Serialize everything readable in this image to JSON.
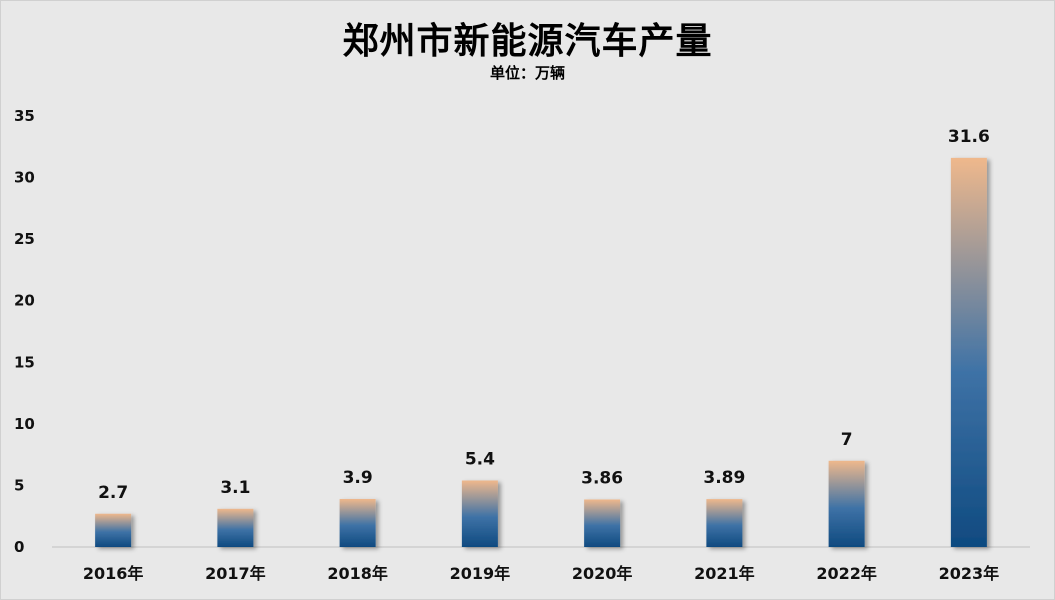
{
  "chart_data": {
    "type": "bar",
    "title": "郑州市新能源汽车产量",
    "subtitle": "单位：万辆",
    "categories": [
      "2016年",
      "2017年",
      "2018年",
      "2019年",
      "2020年",
      "2021年",
      "2022年",
      "2023年"
    ],
    "values": [
      2.7,
      3.1,
      3.9,
      5.4,
      3.86,
      3.89,
      7,
      31.6
    ],
    "value_labels": [
      "2.7",
      "3.1",
      "3.9",
      "5.4",
      "3.86",
      "3.89",
      "7",
      "31.6"
    ],
    "ylim": [
      0,
      35
    ],
    "yticks": [
      0,
      5,
      10,
      15,
      20,
      25,
      30,
      35
    ],
    "grid": false,
    "bar_gradient": {
      "bottom": "#0f4a80",
      "middle": "#3e72a6",
      "top": "#efb88c"
    },
    "background": "#e8e8e8"
  }
}
